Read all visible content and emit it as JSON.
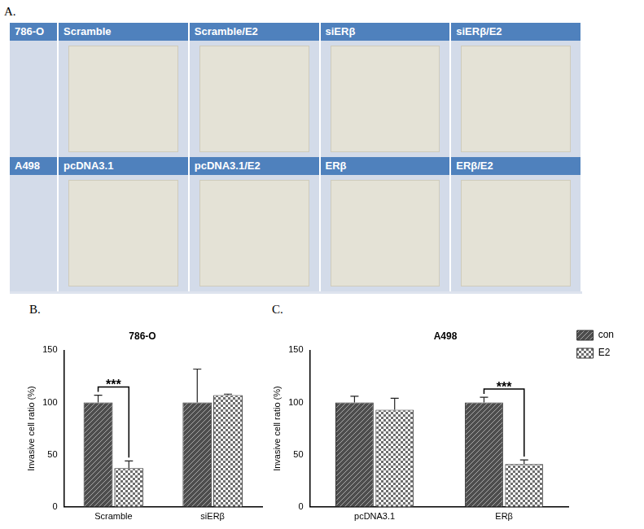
{
  "panel_a": {
    "label": "A.",
    "rows": [
      {
        "cell_line": "786-O",
        "conditions": [
          "Scramble",
          "Scramble/E2",
          "siERβ",
          "siERβ/E2"
        ]
      },
      {
        "cell_line": "A498",
        "conditions": [
          "pcDNA3.1",
          "pcDNA3.1/E2",
          "ERβ",
          "ERβ/E2"
        ]
      }
    ]
  },
  "chart_data": [
    {
      "panel_label": "B.",
      "type": "bar",
      "title": "786-O",
      "y_label": "Invasive cell ratio (%)",
      "categories": [
        "Scramble",
        "siERβ"
      ],
      "series": [
        {
          "color": "#4d4d4d",
          "values": [
            100,
            100
          ],
          "errors": [
            7,
            32
          ]
        },
        {
          "color": "#6e6e6e",
          "values": [
            37,
            107
          ],
          "errors": [
            7,
            1
          ]
        }
      ],
      "ylim": [
        0,
        150
      ],
      "yticks": [
        0,
        50,
        100,
        150
      ],
      "grid": false,
      "annotations": [
        {
          "text": "***",
          "category": "Scramble"
        }
      ]
    },
    {
      "panel_label": "C.",
      "type": "bar",
      "title": "A498",
      "y_label": "Invasive cell ratio (%)",
      "categories": [
        "pcDNA3.1",
        "ERβ"
      ],
      "series": [
        {
          "name": "con",
          "color": "#4d4d4d",
          "values": [
            100,
            100
          ],
          "errors": [
            6,
            5
          ]
        },
        {
          "name": "E2",
          "color": "#6e6e6e",
          "values": [
            93,
            41
          ],
          "errors": [
            11,
            4
          ]
        }
      ],
      "ylim": [
        0,
        150
      ],
      "yticks": [
        0,
        50,
        100,
        150
      ],
      "grid": false,
      "legend": "right",
      "annotations": [
        {
          "text": "***",
          "category": "ERβ"
        }
      ]
    }
  ]
}
